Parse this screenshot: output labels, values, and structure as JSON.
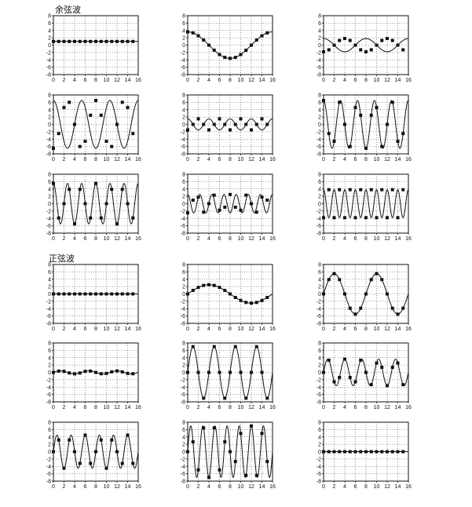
{
  "sections": {
    "cosine": {
      "title": "余弦波"
    },
    "sine": {
      "title": "正弦波"
    }
  },
  "axes": {
    "xlim": [
      0,
      16
    ],
    "ylim": [
      -8,
      8
    ],
    "xticks": [
      0,
      2,
      4,
      6,
      8,
      10,
      12,
      14,
      16
    ],
    "yticks": [
      -8,
      -6,
      -4,
      -2,
      0,
      2,
      4,
      6,
      8
    ],
    "grid": "dotted"
  },
  "chart_data": [
    {
      "type": "line",
      "section": "cosine",
      "amplitude": 1,
      "k": 0,
      "wave": "cos",
      "x": [
        0,
        1,
        2,
        3,
        4,
        5,
        6,
        7,
        8,
        9,
        10,
        11,
        12,
        13,
        14,
        15
      ],
      "values": [
        1,
        1,
        1,
        1,
        1,
        1,
        1,
        1,
        1,
        1,
        1,
        1,
        1,
        1,
        1,
        1
      ]
    },
    {
      "type": "line",
      "section": "cosine",
      "amplitude": 3.6,
      "k": 1,
      "wave": "cos",
      "x": [
        0,
        1,
        2,
        3,
        4,
        5,
        6,
        7,
        8,
        9,
        10,
        11,
        12,
        13,
        14,
        15
      ],
      "values": [
        3.6,
        3.33,
        2.55,
        1.38,
        0,
        -1.38,
        -2.55,
        -3.33,
        -3.6,
        -3.33,
        -2.55,
        -1.38,
        0,
        1.38,
        2.55,
        3.33
      ]
    },
    {
      "type": "line",
      "section": "cosine",
      "amplitude": 1.8,
      "k": 2,
      "wave": "cos",
      "x": [
        0,
        1,
        2,
        3,
        4,
        5,
        6,
        7,
        8,
        9,
        10,
        11,
        12,
        13,
        14,
        15
      ],
      "values": [
        -1.8,
        -1.27,
        0,
        1.27,
        1.8,
        1.27,
        0,
        -1.27,
        -1.8,
        -1.27,
        0,
        1.27,
        1.8,
        1.27,
        0,
        -1.27
      ]
    },
    {
      "type": "line",
      "section": "cosine",
      "amplitude": 6.5,
      "k": 3,
      "wave": "cos",
      "x": [
        0,
        1,
        2,
        3,
        4,
        5,
        6,
        7,
        8,
        9,
        10,
        11,
        12,
        13,
        14,
        15
      ],
      "values": [
        -6.5,
        -2.49,
        4.6,
        6.01,
        0,
        -6.01,
        -4.6,
        2.49,
        6.5,
        2.49,
        -4.6,
        -6.01,
        0,
        6.01,
        4.6,
        -2.49
      ]
    },
    {
      "type": "line",
      "section": "cosine",
      "amplitude": 1.5,
      "k": 4,
      "wave": "cos",
      "x": [
        0,
        1,
        2,
        3,
        4,
        5,
        6,
        7,
        8,
        9,
        10,
        11,
        12,
        13,
        14,
        15
      ],
      "values": [
        -1.5,
        0,
        1.5,
        0,
        -1.5,
        0,
        1.5,
        0,
        -1.5,
        0,
        1.5,
        0,
        -1.5,
        0,
        1.5,
        0
      ]
    },
    {
      "type": "line",
      "section": "cosine",
      "amplitude": 6.5,
      "k": 5,
      "wave": "cos",
      "x": [
        0,
        1,
        2,
        3,
        4,
        5,
        6,
        7,
        8,
        9,
        10,
        11,
        12,
        13,
        14,
        15
      ],
      "values": [
        6.5,
        -2.49,
        -4.6,
        6.01,
        0,
        -6.01,
        4.6,
        2.49,
        -6.5,
        2.49,
        4.6,
        -6.01,
        0,
        6.01,
        -4.6,
        -2.49
      ]
    },
    {
      "type": "line",
      "section": "cosine",
      "amplitude": 5.5,
      "k": 6,
      "wave": "cos",
      "x": [
        0,
        1,
        2,
        3,
        4,
        5,
        6,
        7,
        8,
        9,
        10,
        11,
        12,
        13,
        14,
        15
      ],
      "values": [
        5.5,
        -3.89,
        0,
        3.89,
        -5.5,
        3.89,
        0,
        -3.89,
        5.5,
        -3.89,
        0,
        3.89,
        -5.5,
        3.89,
        0,
        -3.89
      ]
    },
    {
      "type": "line",
      "section": "cosine",
      "amplitude": 2.5,
      "k": 7,
      "wave": "cos",
      "x": [
        0,
        1,
        2,
        3,
        4,
        5,
        6,
        7,
        8,
        9,
        10,
        11,
        12,
        13,
        14,
        15
      ],
      "values": [
        -2.5,
        0.96,
        1.77,
        -2.31,
        0,
        2.31,
        -1.77,
        -0.96,
        2.5,
        -0.96,
        -1.77,
        2.31,
        0,
        -2.31,
        1.77,
        0.96
      ]
    },
    {
      "type": "line",
      "section": "cosine",
      "amplitude": 3.8,
      "k": 8,
      "wave": "cos",
      "x": [
        0,
        1,
        2,
        3,
        4,
        5,
        6,
        7,
        8,
        9,
        10,
        11,
        12,
        13,
        14,
        15
      ],
      "values": [
        -3.8,
        3.8,
        -3.8,
        3.8,
        -3.8,
        3.8,
        -3.8,
        3.8,
        -3.8,
        3.8,
        -3.8,
        3.8,
        -3.8,
        3.8,
        -3.8,
        3.8
      ]
    },
    {
      "type": "line",
      "section": "sine",
      "amplitude": 0,
      "k": 0,
      "wave": "sin",
      "x": [
        0,
        1,
        2,
        3,
        4,
        5,
        6,
        7,
        8,
        9,
        10,
        11,
        12,
        13,
        14,
        15
      ],
      "values": [
        0,
        0,
        0,
        0,
        0,
        0,
        0,
        0,
        0,
        0,
        0,
        0,
        0,
        0,
        0,
        0
      ]
    },
    {
      "type": "line",
      "section": "sine",
      "amplitude": 2.5,
      "k": 1,
      "wave": "sin",
      "x": [
        0,
        1,
        2,
        3,
        4,
        5,
        6,
        7,
        8,
        9,
        10,
        11,
        12,
        13,
        14,
        15
      ],
      "values": [
        0,
        0.96,
        1.77,
        2.31,
        2.5,
        2.31,
        1.77,
        0.96,
        0,
        -0.96,
        -1.77,
        -2.31,
        -2.5,
        -2.31,
        -1.77,
        -0.96
      ]
    },
    {
      "type": "line",
      "section": "sine",
      "amplitude": 5.5,
      "k": 2,
      "wave": "sin",
      "x": [
        0,
        1,
        2,
        3,
        4,
        5,
        6,
        7,
        8,
        9,
        10,
        11,
        12,
        13,
        14,
        15
      ],
      "values": [
        0,
        3.89,
        5.5,
        3.89,
        0,
        -3.89,
        -5.5,
        -3.89,
        0,
        3.89,
        5.5,
        3.89,
        0,
        -3.89,
        -5.5,
        -3.89
      ]
    },
    {
      "type": "line",
      "section": "sine",
      "amplitude": 0.4,
      "k": 3,
      "wave": "sin",
      "x": [
        0,
        1,
        2,
        3,
        4,
        5,
        6,
        7,
        8,
        9,
        10,
        11,
        12,
        13,
        14,
        15
      ],
      "values": [
        0,
        0.37,
        0.28,
        -0.15,
        -0.4,
        -0.15,
        0.28,
        0.37,
        0,
        -0.37,
        -0.28,
        0.15,
        0.4,
        0.15,
        -0.28,
        -0.37
      ]
    },
    {
      "type": "line",
      "section": "sine",
      "amplitude": 7,
      "k": 4,
      "wave": "sin",
      "x": [
        0,
        1,
        2,
        3,
        4,
        5,
        6,
        7,
        8,
        9,
        10,
        11,
        12,
        13,
        14,
        15
      ],
      "values": [
        0,
        7,
        0,
        -7,
        0,
        7,
        0,
        -7,
        0,
        7,
        0,
        -7,
        0,
        7,
        0,
        -7
      ]
    },
    {
      "type": "line",
      "section": "sine",
      "amplitude": 3.6,
      "k": 5,
      "wave": "sin",
      "x": [
        0,
        1,
        2,
        3,
        4,
        5,
        6,
        7,
        8,
        9,
        10,
        11,
        12,
        13,
        14,
        15
      ],
      "values": [
        0,
        3.33,
        -2.55,
        -1.38,
        3.6,
        -1.38,
        -2.55,
        3.33,
        0,
        -3.33,
        2.55,
        1.38,
        -3.6,
        1.38,
        2.55,
        -3.33
      ]
    },
    {
      "type": "line",
      "section": "sine",
      "amplitude": 4.5,
      "k": 6,
      "wave": "sin",
      "x": [
        0,
        1,
        2,
        3,
        4,
        5,
        6,
        7,
        8,
        9,
        10,
        11,
        12,
        13,
        14,
        15
      ],
      "values": [
        0,
        3.18,
        -4.5,
        3.18,
        0,
        -3.18,
        4.5,
        -3.18,
        0,
        3.18,
        -4.5,
        3.18,
        0,
        -3.18,
        4.5,
        -3.18
      ]
    },
    {
      "type": "line",
      "section": "sine",
      "amplitude": 7,
      "k": 7,
      "wave": "sin",
      "x": [
        0,
        1,
        2,
        3,
        4,
        5,
        6,
        7,
        8,
        9,
        10,
        11,
        12,
        13,
        14,
        15
      ],
      "values": [
        0,
        2.68,
        -4.95,
        6.47,
        -7,
        6.47,
        -4.95,
        2.68,
        0,
        -2.68,
        4.95,
        -6.47,
        7,
        -6.47,
        4.95,
        -2.68
      ]
    },
    {
      "type": "line",
      "section": "sine",
      "amplitude": 0,
      "k": 8,
      "wave": "sin",
      "x": [
        0,
        1,
        2,
        3,
        4,
        5,
        6,
        7,
        8,
        9,
        10,
        11,
        12,
        13,
        14,
        15
      ],
      "values": [
        0,
        0,
        0,
        0,
        0,
        0,
        0,
        0,
        0,
        0,
        0,
        0,
        0,
        0,
        0,
        0
      ]
    }
  ]
}
